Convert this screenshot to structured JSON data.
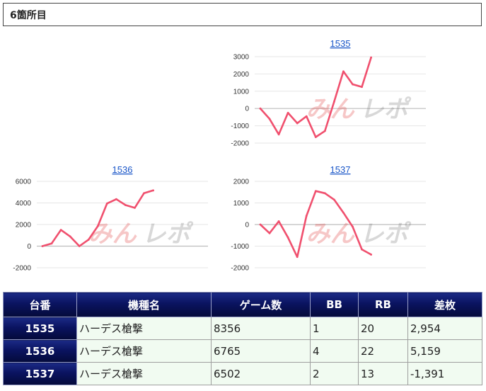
{
  "section": {
    "title": "6箇所目"
  },
  "watermark": "みんレポ",
  "colors": {
    "line": "#f0506e",
    "header_bg": "#0a1360",
    "row_bg": "#f1fbf1",
    "negative": "#e0120e"
  },
  "chart_data": [
    {
      "type": "line",
      "link_label": "1535",
      "ylim": [
        -2000,
        3000
      ],
      "yticks": [
        3000,
        2000,
        1000,
        0,
        -1000,
        -2000
      ],
      "values": [
        0,
        -600,
        -1500,
        -250,
        -850,
        -450,
        -1650,
        -1300,
        400,
        2150,
        1400,
        1250,
        2954
      ]
    },
    {
      "type": "line",
      "link_label": "1536",
      "ylim": [
        -2000,
        6000
      ],
      "yticks": [
        6000,
        4000,
        2000,
        0,
        -2000
      ],
      "values": [
        0,
        250,
        1500,
        900,
        0,
        600,
        1850,
        3950,
        4350,
        3800,
        3550,
        4900,
        5159
      ]
    },
    {
      "type": "line",
      "link_label": "1537",
      "ylim": [
        -2000,
        2000
      ],
      "yticks": [
        2000,
        1000,
        0,
        -1000,
        -2000
      ],
      "values": [
        0,
        -400,
        150,
        -600,
        -1500,
        400,
        1550,
        1450,
        1150,
        550,
        -100,
        -1150,
        -1391
      ]
    }
  ],
  "table": {
    "headers": [
      "台番",
      "機種名",
      "ゲーム数",
      "BB",
      "RB",
      "差枚"
    ],
    "rows": [
      {
        "unit": "1535",
        "machine": "ハーデス槍撃",
        "games": "8356",
        "bb": "1",
        "rb": "20",
        "diff": "2,954",
        "negative": false
      },
      {
        "unit": "1536",
        "machine": "ハーデス槍撃",
        "games": "6765",
        "bb": "4",
        "rb": "22",
        "diff": "5,159",
        "negative": false
      },
      {
        "unit": "1537",
        "machine": "ハーデス槍撃",
        "games": "6502",
        "bb": "2",
        "rb": "13",
        "diff": "-1,391",
        "negative": true
      }
    ]
  }
}
